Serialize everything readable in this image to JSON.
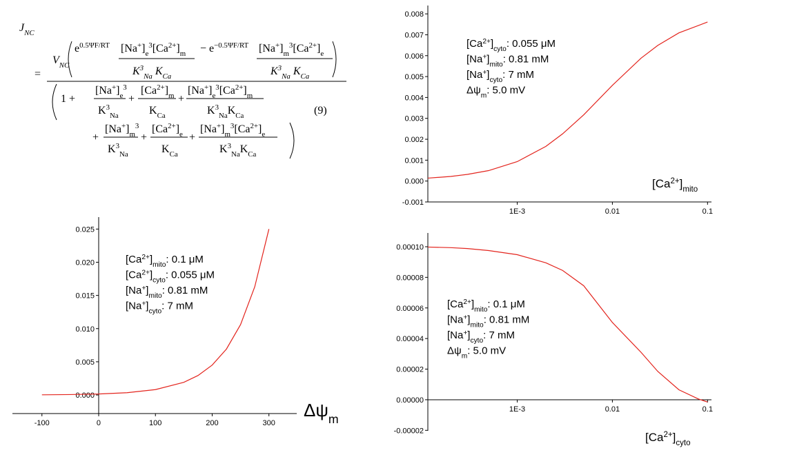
{
  "equation": {
    "terms": [
      [
        {
          "t": "J"
        },
        {
          "sub": "NC"
        }
      ],
      [
        {
          "t": "="
        }
      ],
      [
        {
          "t": "V"
        },
        {
          "sub": "NC"
        }
      ],
      [
        {
          "t": "e"
        },
        {
          "sup": "0.5ΨF/RT"
        }
      ],
      [
        {
          "t": "[Na"
        },
        {
          "sup": "+"
        },
        {
          "t": "]"
        },
        {
          "sub": "e"
        },
        {
          "sup": "3"
        },
        {
          "t": "[Ca"
        },
        {
          "sup": "2+"
        },
        {
          "t": "]"
        },
        {
          "sub": "m"
        }
      ],
      [
        {
          "t": "K"
        },
        {
          "sup": "3"
        },
        {
          "sub": "Na"
        },
        {
          "t": " K"
        },
        {
          "sub": "Ca"
        }
      ],
      [
        {
          "t": "− e"
        },
        {
          "sup": "−0.5ΨF/RT"
        }
      ],
      [
        {
          "t": "[Na"
        },
        {
          "sup": "+"
        },
        {
          "t": "]"
        },
        {
          "sub": "m"
        },
        {
          "sup": "3"
        },
        {
          "t": "[Ca"
        },
        {
          "sup": "2+"
        },
        {
          "t": "]"
        },
        {
          "sub": "e"
        }
      ],
      [
        {
          "t": "K"
        },
        {
          "sup": "3"
        },
        {
          "sub": "Na"
        },
        {
          "t": " K"
        },
        {
          "sub": "Ca"
        }
      ],
      [
        {
          "t": "1 +"
        }
      ],
      [
        {
          "t": "[Na"
        },
        {
          "sup": "+"
        },
        {
          "t": "]"
        },
        {
          "sub": "e"
        },
        {
          "sup": "3"
        }
      ],
      [
        {
          "t": "K"
        },
        {
          "sup": "3"
        },
        {
          "sub": "Na"
        }
      ],
      [
        {
          "t": "+"
        }
      ],
      [
        {
          "t": "[Ca"
        },
        {
          "sup": "2+"
        },
        {
          "t": "]"
        },
        {
          "sub": "m"
        }
      ],
      [
        {
          "t": "K"
        },
        {
          "sub": "Ca"
        }
      ],
      [
        {
          "t": "+"
        }
      ],
      [
        {
          "t": "[Na"
        },
        {
          "sup": "+"
        },
        {
          "t": "]"
        },
        {
          "sub": "e"
        },
        {
          "sup": "3"
        },
        {
          "t": "[Ca"
        },
        {
          "sup": "2+"
        },
        {
          "t": "]"
        },
        {
          "sub": "m"
        }
      ],
      [
        {
          "t": "K"
        },
        {
          "sup": "3"
        },
        {
          "sub": "Na"
        },
        {
          "t": "K"
        },
        {
          "sub": "Ca"
        }
      ],
      [
        {
          "t": "(9)"
        }
      ],
      [
        {
          "t": "+"
        }
      ],
      [
        {
          "t": "[Na"
        },
        {
          "sup": "+"
        },
        {
          "t": "]"
        },
        {
          "sub": "m"
        },
        {
          "sup": "3"
        }
      ],
      [
        {
          "t": "K"
        },
        {
          "sup": "3"
        },
        {
          "sub": "Na"
        }
      ],
      [
        {
          "t": "+"
        }
      ],
      [
        {
          "t": "[Ca"
        },
        {
          "sup": "2+"
        },
        {
          "t": "]"
        },
        {
          "sub": "e"
        }
      ],
      [
        {
          "t": "K"
        },
        {
          "sub": "Ca"
        }
      ],
      [
        {
          "t": "+"
        }
      ],
      [
        {
          "t": "[Na"
        },
        {
          "sup": "+"
        },
        {
          "t": "]"
        },
        {
          "sub": "m"
        },
        {
          "sup": "3"
        },
        {
          "t": "[Ca"
        },
        {
          "sup": "2+"
        },
        {
          "t": "]"
        },
        {
          "sub": "e"
        }
      ],
      [
        {
          "t": "K"
        },
        {
          "sup": "3"
        },
        {
          "sub": "Na"
        },
        {
          "t": "K"
        },
        {
          "sub": "Ca"
        }
      ]
    ]
  },
  "chart_data": [
    {
      "type": "line",
      "color": "#e3231c",
      "xscale": "log",
      "x": [
        0.000115,
        0.0002,
        0.0003,
        0.0005,
        0.001,
        0.002,
        0.003,
        0.005,
        0.01,
        0.02,
        0.03,
        0.05,
        0.1
      ],
      "values": [
        0.00014,
        0.00022,
        0.00032,
        0.0005,
        0.00093,
        0.00166,
        0.00226,
        0.00317,
        0.00458,
        0.00588,
        0.00649,
        0.00709,
        0.00761
      ],
      "xlim": [
        0.000115,
        0.11
      ],
      "xticks": [
        {
          "value": 0.001,
          "label": "1E-3"
        },
        0.01,
        0.1
      ],
      "ylim": [
        -0.001,
        0.0084
      ],
      "yticks": [
        -0.001,
        {
          "value": 0,
          "label": "0.000"
        },
        0.001,
        0.002,
        0.003,
        0.004,
        0.005,
        0.006,
        0.007,
        0.008
      ],
      "xlabel": [
        {
          "t": "[Ca"
        },
        {
          "sup": "2+"
        },
        {
          "t": "]"
        },
        {
          "sub": "mito"
        }
      ],
      "annotation": [
        [
          {
            "t": "[Ca"
          },
          {
            "sup": "2+"
          },
          {
            "t": "]"
          },
          {
            "sub": "cyto"
          },
          {
            "t": ": 0.055 μM"
          }
        ],
        [
          {
            "t": "[Na"
          },
          {
            "sup": "+"
          },
          {
            "t": "]"
          },
          {
            "sub": "mito"
          },
          {
            "t": ": 0.81 mM"
          }
        ],
        [
          {
            "t": "[Na"
          },
          {
            "sup": "+"
          },
          {
            "t": "]"
          },
          {
            "sub": "cyto"
          },
          {
            "t": ": 7 mM"
          }
        ],
        [
          {
            "t": "Δψ"
          },
          {
            "sub": "m"
          },
          {
            "t": ": 5.0 mV"
          }
        ]
      ]
    },
    {
      "type": "line",
      "color": "#e3231c",
      "xscale": "linear",
      "yaxis_at": 0,
      "x": [
        -100,
        -50,
        0,
        50,
        100,
        150,
        175,
        200,
        225,
        250,
        275,
        300
      ],
      "values": [
        2.6e-05,
        6.2e-05,
        0.000146,
        0.000343,
        0.00081,
        0.00191,
        0.00293,
        0.0045,
        0.0069,
        0.0106,
        0.0163,
        0.025
      ],
      "xlim": [
        -152,
        349
      ],
      "xticks": [
        -100,
        0,
        100,
        200,
        300
      ],
      "ylim": [
        -0.0028,
        0.0268
      ],
      "yticks": [
        {
          "value": 0,
          "label": "0.000"
        },
        0.005,
        {
          "value": 0.01,
          "label": "0.010"
        },
        0.015,
        {
          "value": 0.02,
          "label": "0.020"
        },
        0.025
      ],
      "xlabel": [
        {
          "t": "Δψ"
        },
        {
          "sub": "m"
        }
      ],
      "annotation": [
        [
          {
            "t": "[Ca"
          },
          {
            "sup": "2+"
          },
          {
            "t": "]"
          },
          {
            "sub": "mito"
          },
          {
            "t": ": 0.1 μM"
          }
        ],
        [
          {
            "t": "[Ca"
          },
          {
            "sup": "2+"
          },
          {
            "t": "]"
          },
          {
            "sub": "cyto"
          },
          {
            "t": ": 0.055 μM"
          }
        ],
        [
          {
            "t": "[Na"
          },
          {
            "sup": "+"
          },
          {
            "t": "]"
          },
          {
            "sub": "mito"
          },
          {
            "t": ": 0.81 mM"
          }
        ],
        [
          {
            "t": "[Na"
          },
          {
            "sup": "+"
          },
          {
            "t": "]"
          },
          {
            "sub": "cyto"
          },
          {
            "t": ": 7 mM"
          }
        ]
      ]
    },
    {
      "type": "line",
      "color": "#e3231c",
      "xscale": "log",
      "xaxis_at": 0,
      "x": [
        0.000115,
        0.0002,
        0.0003,
        0.0005,
        0.001,
        0.002,
        0.003,
        0.005,
        0.01,
        0.02,
        0.03,
        0.05,
        0.08,
        0.1
      ],
      "values": [
        9.98e-05,
        9.94e-05,
        9.88e-05,
        9.75e-05,
        9.48e-05,
        8.95e-05,
        8.45e-05,
        7.45e-05,
        5.05e-05,
        3.1e-05,
        1.85e-05,
        6.5e-06,
        5e-07,
        -1.5e-06
      ],
      "xlim": [
        0.000115,
        0.11
      ],
      "xticks": [
        {
          "value": 0.001,
          "label": "1E-3"
        },
        0.01,
        0.1
      ],
      "ylim": [
        -2.03e-05,
        0.000109
      ],
      "yticks": [
        {
          "value": -2e-05,
          "label": "-0.00002"
        },
        {
          "value": 0,
          "label": "0.00000"
        },
        {
          "value": 2e-05,
          "label": "0.00002"
        },
        {
          "value": 4e-05,
          "label": "0.00004"
        },
        {
          "value": 6e-05,
          "label": "0.00006"
        },
        {
          "value": 8e-05,
          "label": "0.00008"
        },
        {
          "value": 0.0001,
          "label": "0.00010"
        }
      ],
      "xlabel": [
        {
          "t": "[Ca"
        },
        {
          "sup": "2+"
        },
        {
          "t": "]"
        },
        {
          "sub": "cyto"
        }
      ],
      "annotation": [
        [
          {
            "t": "[Ca"
          },
          {
            "sup": "2+"
          },
          {
            "t": "]"
          },
          {
            "sub": "mito"
          },
          {
            "t": ": 0.1 μM"
          }
        ],
        [
          {
            "t": "[Na"
          },
          {
            "sup": "+"
          },
          {
            "t": "]"
          },
          {
            "sub": "mito"
          },
          {
            "t": ": 0.81 mM"
          }
        ],
        [
          {
            "t": "[Na"
          },
          {
            "sup": "+"
          },
          {
            "t": "]"
          },
          {
            "sub": "cyto"
          },
          {
            "t": ": 7 mM"
          }
        ],
        [
          {
            "t": "Δψ"
          },
          {
            "sub": "m"
          },
          {
            "t": ": 5.0 mV"
          }
        ]
      ]
    }
  ]
}
